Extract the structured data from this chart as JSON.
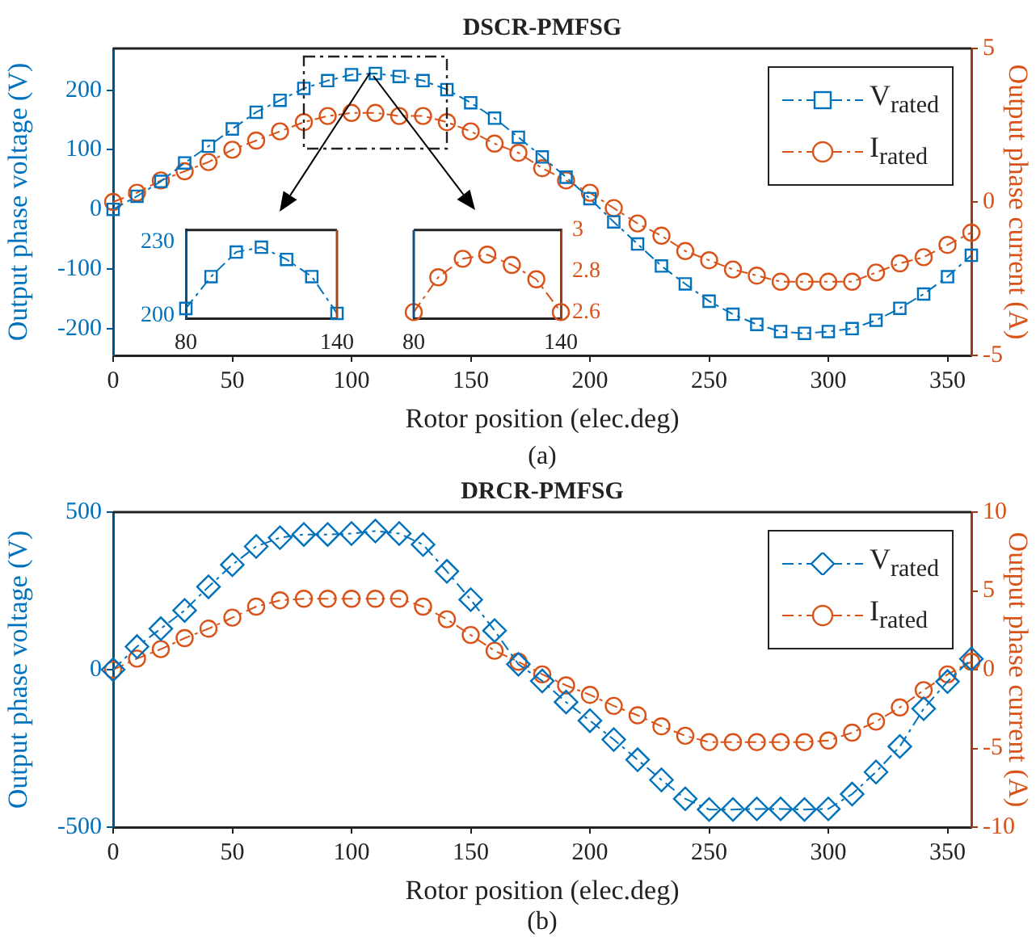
{
  "chart_data": [
    {
      "type": "line",
      "title": "DSCR-PMFSG",
      "xlabel": "Rotor position (elec.deg)",
      "ylabel": "Output phase voltage (V)",
      "y2label": "Output phase current (A)",
      "annotations": [
        "(a)"
      ],
      "x": [
        0,
        10,
        20,
        30,
        40,
        50,
        60,
        70,
        80,
        90,
        100,
        110,
        120,
        130,
        140,
        150,
        160,
        170,
        180,
        190,
        200,
        210,
        220,
        230,
        240,
        250,
        260,
        270,
        280,
        290,
        300,
        310,
        320,
        330,
        340,
        350,
        360
      ],
      "xlim": [
        0,
        360
      ],
      "xticks": [
        0,
        50,
        100,
        150,
        200,
        250,
        300,
        350
      ],
      "ylim": [
        -245,
        270
      ],
      "yticks": [
        -200,
        -100,
        0,
        100,
        200
      ],
      "y2lim": [
        -5,
        5
      ],
      "y2ticks": [
        -5,
        0,
        5
      ],
      "legend": "top right",
      "line_style": "dashed",
      "series": [
        {
          "name": "V$_{rated}$",
          "color": "#0072bd",
          "marker": "square",
          "values": [
            0,
            22,
            47,
            78,
            106,
            135,
            163,
            183,
            203,
            216,
            226,
            228,
            223,
            216,
            201,
            179,
            153,
            121,
            88,
            54,
            18,
            -21,
            -58,
            -95,
            -125,
            -154,
            -176,
            -193,
            -205,
            -208,
            -205,
            -200,
            -186,
            -166,
            -142,
            -113,
            -77
          ]
        },
        {
          "name": "I$_{rated}$",
          "color": "#d95319",
          "marker": "circle",
          "axis": "y2",
          "values": [
            0,
            0.3,
            0.7,
            1,
            1.3,
            1.7,
            2,
            2.3,
            2.6,
            2.8,
            2.9,
            2.9,
            2.8,
            2.8,
            2.6,
            2.3,
            1.9,
            1.6,
            1.1,
            0.7,
            0.3,
            -0.2,
            -0.7,
            -1.1,
            -1.6,
            -1.9,
            -2.2,
            -2.4,
            -2.6,
            -2.6,
            -2.6,
            -2.6,
            -2.3,
            -2,
            -1.8,
            -1.4,
            -1
          ]
        }
      ]
    },
    {
      "type": "line",
      "x": [
        80,
        90,
        100,
        110,
        120,
        130,
        140
      ],
      "xlim": [
        80,
        140
      ],
      "xticks": [
        80,
        140
      ],
      "ylim": [
        199,
        235
      ],
      "yticks": [
        200,
        230
      ],
      "line_style": "dashed",
      "series": [
        {
          "color": "#0072bd",
          "marker": "square",
          "values": [
            203,
            216,
            226,
            228,
            223,
            216,
            201
          ]
        }
      ]
    },
    {
      "type": "line",
      "x": [
        80,
        90,
        100,
        110,
        120,
        130,
        140
      ],
      "xlim": [
        80,
        140
      ],
      "xticks": [
        80,
        140
      ],
      "y2lim": [
        2.57,
        3
      ],
      "y2ticks": [
        2.6,
        2.8,
        3
      ],
      "line_style": "dashed",
      "series": [
        {
          "color": "#d95319",
          "marker": "circle",
          "axis": "y2",
          "values": [
            2.6,
            2.77,
            2.86,
            2.88,
            2.83,
            2.76,
            2.6
          ]
        }
      ]
    },
    {
      "type": "line",
      "title": "DRCR-PMFSG",
      "xlabel": "Rotor position (elec.deg)",
      "ylabel": "Output phase voltage (V)",
      "y2label": "Output phase current (A)",
      "annotations": [
        "(b)"
      ],
      "x": [
        0,
        10,
        20,
        30,
        40,
        50,
        60,
        70,
        80,
        90,
        100,
        110,
        120,
        130,
        140,
        150,
        160,
        170,
        180,
        190,
        200,
        210,
        220,
        230,
        240,
        250,
        260,
        270,
        280,
        290,
        300,
        310,
        320,
        330,
        340,
        350,
        360
      ],
      "xlim": [
        0,
        360
      ],
      "xticks": [
        0,
        50,
        100,
        150,
        200,
        250,
        300,
        350
      ],
      "ylim": [
        -500,
        500
      ],
      "yticks": [
        -500,
        0,
        500
      ],
      "y2lim": [
        -10,
        10
      ],
      "y2ticks": [
        -10,
        -5,
        0,
        5,
        10
      ],
      "legend": "top right",
      "line_style": "dashed",
      "series": [
        {
          "name": "V$_{rated}$",
          "color": "#0072bd",
          "marker": "diamond",
          "values": [
            0,
            73,
            130,
            188,
            263,
            333,
            391,
            419,
            429,
            429,
            432,
            440,
            432,
            397,
            312,
            222,
            124,
            17,
            -36,
            -103,
            -162,
            -222,
            -286,
            -350,
            -410,
            -444,
            -444,
            -442,
            -442,
            -444,
            -442,
            -395,
            -325,
            -244,
            -124,
            -38,
            34
          ]
        },
        {
          "name": "I$_{rated}$",
          "color": "#d95319",
          "marker": "circle",
          "axis": "y2",
          "values": [
            0,
            0.7,
            1.3,
            2,
            2.6,
            3.3,
            4,
            4.4,
            4.5,
            4.5,
            4.5,
            4.5,
            4.5,
            4,
            3.2,
            2.2,
            1.2,
            0.5,
            -0.3,
            -1,
            -1.6,
            -2.3,
            -2.9,
            -3.6,
            -4.2,
            -4.6,
            -4.6,
            -4.6,
            -4.6,
            -4.6,
            -4.5,
            -4,
            -3.3,
            -2.4,
            -1.3,
            -0.3,
            0.5
          ]
        }
      ]
    }
  ]
}
